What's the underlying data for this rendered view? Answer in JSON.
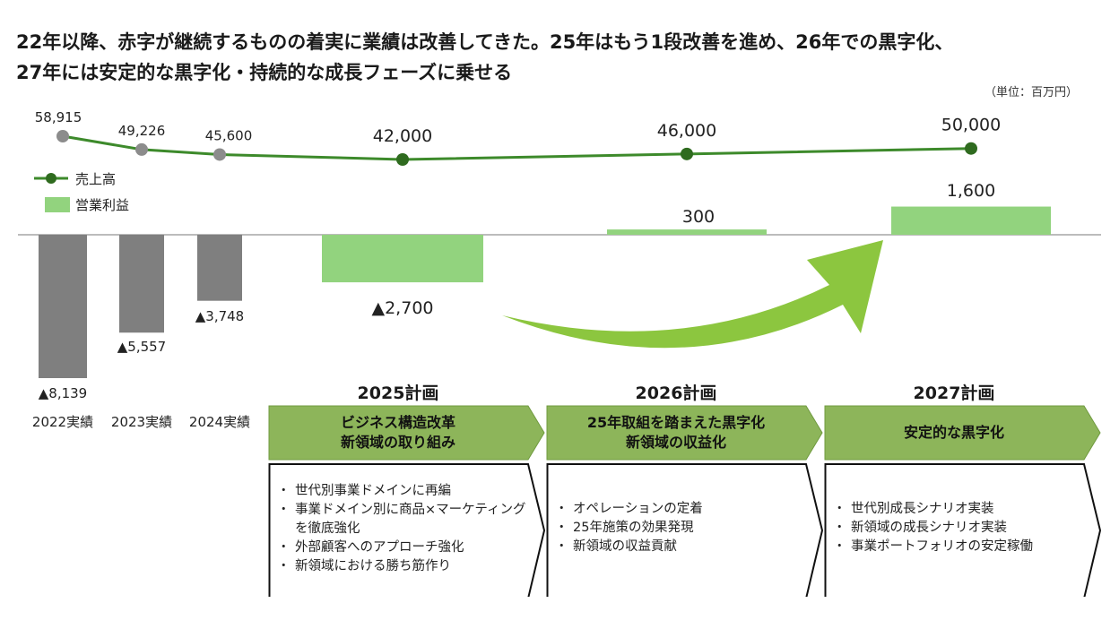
{
  "header": {
    "title_line1": "22年以降、赤字が継続するものの着実に業績は改善してきた。25年はもう1段改善を進め、26年での黒字化、",
    "title_line2": "27年には安定的な黒字化・持続的な成長フェーズに乗せる",
    "unit": "（単位：百万円）"
  },
  "chart_data": {
    "type": "bar",
    "categories": [
      "2022実績",
      "2023実績",
      "2024実績",
      "2025計画",
      "2026計画",
      "2027計画"
    ],
    "series": [
      {
        "name": "売上高",
        "kind": "line",
        "values": [
          58915,
          49226,
          45600,
          42000,
          46000,
          50000
        ],
        "labels": [
          "58,915",
          "49,226",
          "45,600",
          "42,000",
          "46,000",
          "50,000"
        ],
        "marker_colors": [
          "#8c8c8c",
          "#8c8c8c",
          "#8c8c8c",
          "#2f6b1f",
          "#2f6b1f",
          "#2f6b1f"
        ],
        "line_color": "#3d8a2b"
      },
      {
        "name": "営業利益",
        "kind": "bar",
        "values": [
          -8139,
          -5557,
          -3748,
          -2700,
          300,
          1600
        ],
        "labels": [
          "▲8,139",
          "▲5,557",
          "▲3,748",
          "▲2,700",
          "300",
          "1,600"
        ],
        "colors": [
          "#7f7f7f",
          "#7f7f7f",
          "#7f7f7f",
          "#92d37e",
          "#92d37e",
          "#92d37e"
        ]
      }
    ],
    "legend": {
      "items": [
        "売上高",
        "営業利益"
      ],
      "placement": "top-left"
    },
    "arrow_color": "#8cc63f"
  },
  "plans": [
    {
      "year_title": "2025計画",
      "headline": [
        "ビジネス構造改革",
        "新領域の取り組み"
      ],
      "bullets": [
        "世代別事業ドメインに再編",
        "事業ドメイン別に商品×マーケティングを徹底強化",
        "外部顧客へのアプローチ強化",
        "新領域における勝ち筋作り"
      ]
    },
    {
      "year_title": "2026計画",
      "headline": [
        "25年取組を踏まえた黒字化",
        "新領域の収益化"
      ],
      "bullets": [
        "オペレーションの定着",
        "25年施策の効果発現",
        "新領域の収益貢献"
      ]
    },
    {
      "year_title": "2027計画",
      "headline": [
        "安定的な黒字化"
      ],
      "bullets": [
        "世代別成長シナリオ実装",
        "新領域の成長シナリオ実装",
        "事業ポートフォリオの安定稼働"
      ]
    }
  ],
  "colors": {
    "chevron_fill": "#8db55a",
    "chevron_border": "#ffffff",
    "body_border": "#111111"
  }
}
